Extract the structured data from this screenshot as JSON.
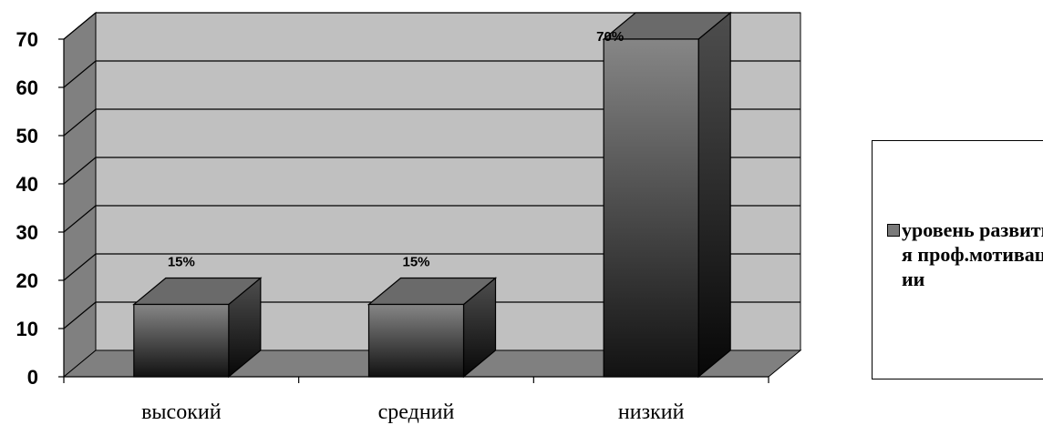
{
  "chart_data": {
    "type": "bar",
    "categories": [
      "высокий",
      "средний",
      "низкий"
    ],
    "series": [
      {
        "name": "уровень развития проф.мотивации",
        "values": [
          15,
          15,
          70
        ],
        "data_labels": [
          "15%",
          "15%",
          "70%"
        ]
      }
    ],
    "y_ticks": [
      "0",
      "10",
      "20",
      "30",
      "40",
      "50",
      "60",
      "70"
    ],
    "ylim": [
      0,
      70
    ],
    "grid": true,
    "three_d": true,
    "legend_position": "right",
    "colors": {
      "plot_wall": "#c0c0c0",
      "floor": "#808080",
      "bar_fill": "#5a5a5a",
      "bar_top": "#6a6a6a",
      "bar_side": "#2f2f2f"
    }
  }
}
